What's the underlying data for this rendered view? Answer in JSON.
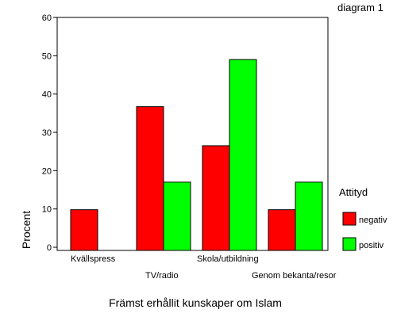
{
  "chart_data": {
    "type": "bar",
    "title": "diagram 1",
    "xlabel": "Främst erhållit kunskaper om Islam",
    "ylabel": "Procent",
    "ylim": [
      0,
      60
    ],
    "yticks": [
      0,
      10,
      20,
      30,
      40,
      50,
      60
    ],
    "grid": false,
    "legend_position": "right",
    "legend_title": "Attityd",
    "categories": [
      "Kvällspress",
      "TV/radio",
      "Skola/utbildning",
      "Genom bekanta/resor"
    ],
    "series": [
      {
        "name": "negativ",
        "color": "#ff0000",
        "values": [
          9.8,
          36.7,
          26.5,
          9.8
        ]
      },
      {
        "name": "positiv",
        "color": "#00ff00",
        "values": [
          null,
          17.0,
          49.0,
          17.0
        ]
      }
    ]
  }
}
